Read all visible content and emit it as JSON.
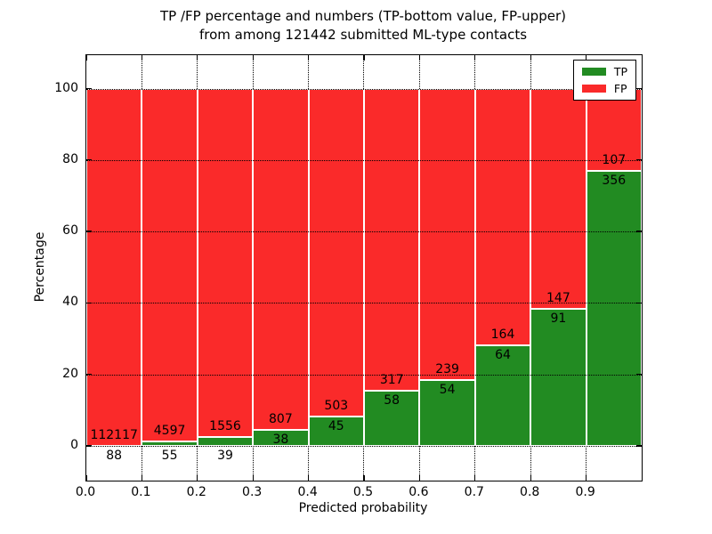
{
  "chart_data": {
    "type": "bar",
    "stacked": true,
    "normalized_to_percent": true,
    "title_line1": "TP /FP percentage and numbers (TP-bottom value, FP-upper)",
    "title_line2": "from among 121442 submitted ML-type contacts",
    "xlabel": "Predicted probability",
    "ylabel": "Percentage",
    "total_contacts": 121442,
    "categories": [
      "0.0-0.1",
      "0.1-0.2",
      "0.2-0.3",
      "0.3-0.4",
      "0.4-0.5",
      "0.5-0.6",
      "0.6-0.7",
      "0.7-0.8",
      "0.8-0.9",
      "0.9-1.0"
    ],
    "xticks": [
      "0.0",
      "0.1",
      "0.2",
      "0.3",
      "0.4",
      "0.5",
      "0.6",
      "0.7",
      "0.8",
      "0.9"
    ],
    "yticks": [
      0,
      20,
      40,
      60,
      80,
      100
    ],
    "xlim": [
      0.0,
      1.0
    ],
    "ylim": [
      -10,
      110
    ],
    "grid": "dotted",
    "legend_position": "upper right",
    "series": [
      {
        "name": "TP",
        "color": "#228B22",
        "counts": [
          88,
          55,
          39,
          38,
          45,
          58,
          54,
          64,
          91,
          356
        ],
        "percent": [
          0.08,
          1.18,
          2.45,
          4.5,
          8.21,
          15.47,
          18.43,
          28.07,
          38.24,
          76.89
        ]
      },
      {
        "name": "FP",
        "color": "#FA2A2A",
        "counts": [
          112117,
          4597,
          1556,
          807,
          503,
          317,
          239,
          164,
          147,
          107
        ],
        "percent": [
          99.92,
          98.82,
          97.55,
          95.5,
          91.79,
          84.53,
          81.57,
          71.93,
          61.76,
          23.11
        ]
      }
    ],
    "legend": [
      {
        "label": "TP",
        "color": "#228B22"
      },
      {
        "label": "FP",
        "color": "#FA2A2A"
      }
    ]
  }
}
